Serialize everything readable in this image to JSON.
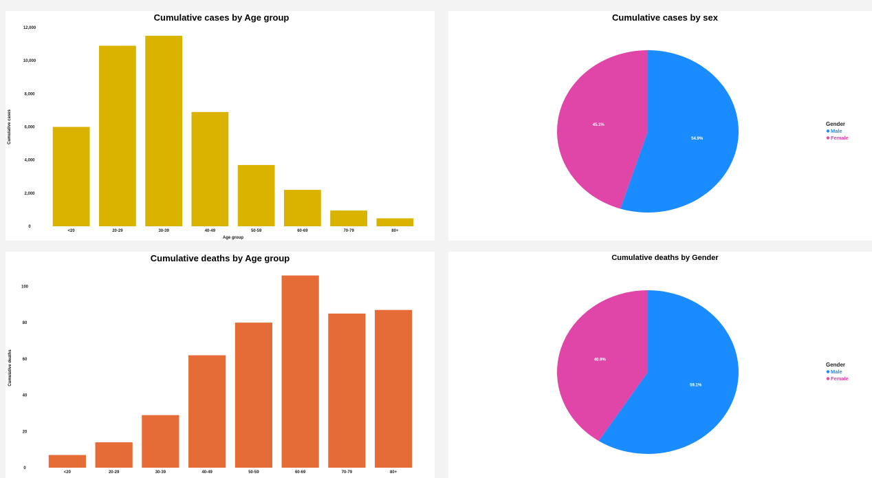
{
  "chart_data": [
    {
      "type": "bar",
      "title": "Cumulative cases by Age group",
      "xlabel": "Age group",
      "ylabel": "Cumulative cases",
      "categories": [
        "<20",
        "20-29",
        "30-39",
        "40-49",
        "50-59",
        "60-69",
        "70-79",
        "80+"
      ],
      "values": [
        6000,
        10900,
        11500,
        6900,
        3700,
        2200,
        950,
        480
      ],
      "ylim": [
        0,
        12000
      ],
      "yticks": [
        0,
        2000,
        4000,
        6000,
        8000,
        10000,
        12000
      ],
      "ytick_labels": [
        "0",
        "2,000",
        "4,000",
        "6,000",
        "8,000",
        "10,000",
        "12,000"
      ],
      "color": "#d9b300",
      "grid": false
    },
    {
      "type": "pie",
      "title": "Cumulative   cases by  sex",
      "legend_title": "Gender",
      "legend_position": "right",
      "labels": [
        "Male",
        "Female"
      ],
      "values": [
        54.9,
        45.1
      ],
      "value_labels": [
        "54.9%",
        "45.1%"
      ],
      "colors": [
        "#1a8cff",
        "#e045a8"
      ]
    },
    {
      "type": "bar",
      "title": "Cumulative deaths by Age group",
      "xlabel": "Age group",
      "ylabel": "Cumulative deaths",
      "categories": [
        "<20",
        "20-29",
        "30-39",
        "40-49",
        "50-59",
        "60-69",
        "70-79",
        "80+"
      ],
      "values": [
        7,
        14,
        29,
        62,
        80,
        106,
        85,
        87
      ],
      "ylim": [
        0,
        110
      ],
      "yticks": [
        0,
        20,
        40,
        60,
        80,
        100
      ],
      "ytick_labels": [
        "0",
        "20",
        "40",
        "60",
        "80",
        "100"
      ],
      "color": "#e66c37",
      "grid": false
    },
    {
      "type": "pie",
      "title": "Cumulative deaths by Gender",
      "legend_title": "Gender",
      "legend_position": "right",
      "labels": [
        "Male",
        "Female"
      ],
      "values": [
        59.1,
        40.9
      ],
      "value_labels": [
        "59.1%",
        "40.9%"
      ],
      "colors": [
        "#1a8cff",
        "#e045a8"
      ]
    }
  ]
}
